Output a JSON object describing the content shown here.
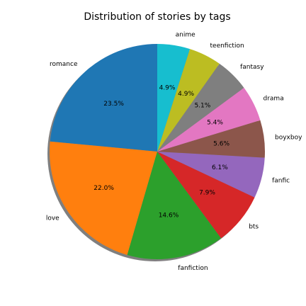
{
  "chart_data": {
    "type": "pie",
    "title": "Distribution of stories by tags",
    "start_angle_deg": 90,
    "direction": "counterclockwise",
    "shadow": true,
    "slices": [
      {
        "label": "romance",
        "value": 23.5,
        "pct_label": "23.5%",
        "color": "#1f77b4"
      },
      {
        "label": "love",
        "value": 22.0,
        "pct_label": "22.0%",
        "color": "#ff7f0e"
      },
      {
        "label": "fanfiction",
        "value": 14.6,
        "pct_label": "14.6%",
        "color": "#2ca02c"
      },
      {
        "label": "bts",
        "value": 7.9,
        "pct_label": "7.9%",
        "color": "#d62728"
      },
      {
        "label": "fanfic",
        "value": 6.1,
        "pct_label": "6.1%",
        "color": "#9467bd"
      },
      {
        "label": "boyxboy",
        "value": 5.6,
        "pct_label": "5.6%",
        "color": "#8c564b"
      },
      {
        "label": "drama",
        "value": 5.4,
        "pct_label": "5.4%",
        "color": "#e377c2"
      },
      {
        "label": "fantasy",
        "value": 5.1,
        "pct_label": "5.1%",
        "color": "#7f7f7f"
      },
      {
        "label": "teenfiction",
        "value": 4.9,
        "pct_label": "4.9%",
        "color": "#bcbd22"
      },
      {
        "label": "anime",
        "value": 4.9,
        "pct_label": "4.9%",
        "color": "#17becf"
      }
    ]
  }
}
